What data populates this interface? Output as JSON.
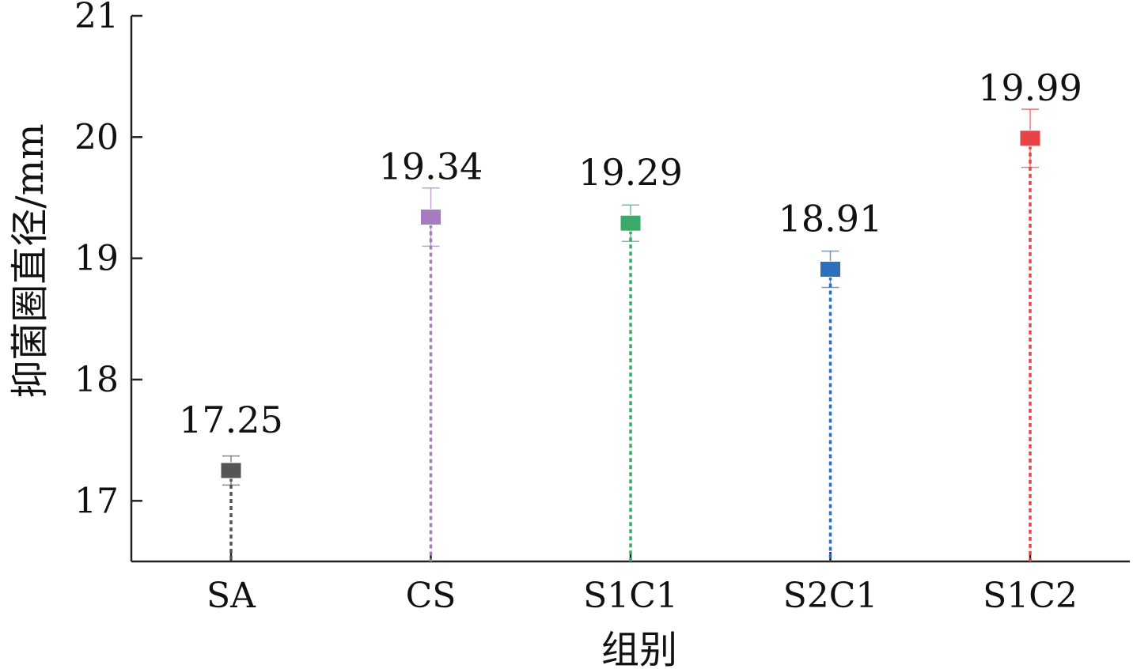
{
  "chart_data": {
    "type": "scatter",
    "title": "",
    "xlabel": "组别",
    "ylabel": "抑菌圈直径/mm",
    "categories": [
      "SA",
      "CS",
      "S1C1",
      "S2C1",
      "S1C2"
    ],
    "values": [
      17.25,
      19.34,
      19.29,
      18.91,
      19.99
    ],
    "errors": [
      0.12,
      0.24,
      0.15,
      0.15,
      0.24
    ],
    "data_labels": [
      "17.25",
      "19.34",
      "19.29",
      "18.91",
      "19.99"
    ],
    "colors": [
      "#555555",
      "#a57cc0",
      "#3aaa6a",
      "#2f6fc0",
      "#e64446"
    ],
    "y_ticks": [
      "17",
      "18",
      "19",
      "20",
      "21"
    ],
    "ylim": [
      16.5,
      21
    ],
    "grid": false,
    "marker": "square",
    "drop_lines": "dotted"
  }
}
